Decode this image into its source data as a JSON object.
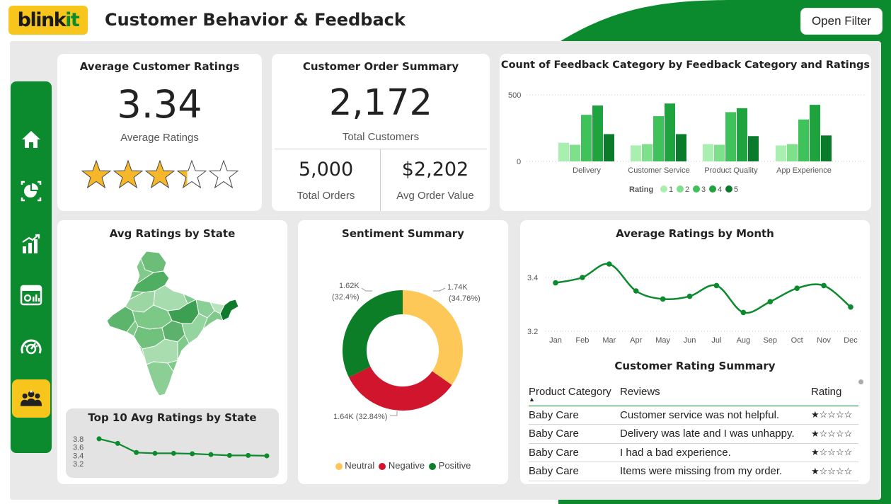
{
  "header": {
    "logo_dark": "blink",
    "logo_green": "it",
    "title": "Customer Behavior & Feedback",
    "filter_button": "Open Filter"
  },
  "sidebar": {
    "items": [
      {
        "icon": "home-icon"
      },
      {
        "icon": "pie-report-icon"
      },
      {
        "icon": "growth-chart-icon"
      },
      {
        "icon": "dashboard-window-icon"
      },
      {
        "icon": "speedometer-icon"
      },
      {
        "icon": "customers-group-icon",
        "active": true
      }
    ]
  },
  "avg_ratings": {
    "title": "Average Customer Ratings",
    "value": "3.34",
    "label": "Average Ratings",
    "stars": 3.34,
    "stars_max": 5
  },
  "order_summary": {
    "title": "Customer Order Summary",
    "customers_value": "2,172",
    "customers_label": "Total Customers",
    "orders_value": "5,000",
    "orders_label": "Total Orders",
    "aov_value": "$2,202",
    "aov_label": "Avg Order Value"
  },
  "feedback_chart": {
    "title": "Count of Feedback Category by Feedback Category and Ratings",
    "legend_title": "Rating",
    "colors": [
      "#a8efb0",
      "#7fe08b",
      "#3fc25a",
      "#1ea33f",
      "#0a7a2b"
    ],
    "chart_data": {
      "type": "bar",
      "categories": [
        "Delivery",
        "Customer Service",
        "Product Quality",
        "App Experience"
      ],
      "series": [
        {
          "name": "1",
          "values": [
            140,
            120,
            130,
            120
          ]
        },
        {
          "name": "2",
          "values": [
            125,
            130,
            125,
            130
          ]
        },
        {
          "name": "3",
          "values": [
            350,
            340,
            370,
            315
          ]
        },
        {
          "name": "4",
          "values": [
            420,
            435,
            400,
            425
          ]
        },
        {
          "name": "5",
          "values": [
            205,
            205,
            190,
            195
          ]
        }
      ],
      "yticks": [
        "500",
        "0"
      ],
      "ylim": [
        0,
        560
      ]
    }
  },
  "state_map": {
    "title": "Avg Ratings by State"
  },
  "top10": {
    "title": "Top 10 Avg Ratings by State",
    "chart_data": {
      "type": "line",
      "values": [
        3.8,
        3.69,
        3.47,
        3.45,
        3.45,
        3.44,
        3.42,
        3.4,
        3.4,
        3.39
      ],
      "yticks": [
        "3.8",
        "3.6",
        "3.4",
        "3.2"
      ],
      "ylim": [
        3.15,
        3.85
      ]
    }
  },
  "sentiment": {
    "title": "Sentiment Summary",
    "chart_data": {
      "type": "pie",
      "slices": [
        {
          "name": "Neutral",
          "value": 34.76,
          "label": "1.74K (34.76%)",
          "color": "#fdc858"
        },
        {
          "name": "Negative",
          "value": 32.84,
          "label": "1.64K (32.84%)",
          "color": "#d0152c"
        },
        {
          "name": "Positive",
          "value": 32.4,
          "label": "1.62K (32.4%)",
          "color": "#0c7e28"
        }
      ]
    },
    "neutral_label_1": "1.74K",
    "neutral_label_2": "(34.76%)",
    "positive_label_1": "1.62K",
    "positive_label_2": "(32.4%)",
    "negative_label": "1.64K (32.84%)",
    "legend": [
      "Neutral",
      "Negative",
      "Positive"
    ]
  },
  "monthly": {
    "title": "Average Ratings by Month",
    "chart_data": {
      "type": "line",
      "categories": [
        "Jan",
        "Feb",
        "Mar",
        "Apr",
        "May",
        "Jun",
        "Jul",
        "Aug",
        "Sep",
        "Oct",
        "Nov",
        "Dec"
      ],
      "values": [
        3.38,
        3.4,
        3.45,
        3.35,
        3.32,
        3.33,
        3.37,
        3.27,
        3.31,
        3.36,
        3.37,
        3.29
      ],
      "yticks": [
        "3.4",
        "3.2"
      ],
      "ylim": [
        3.2,
        3.4
      ]
    }
  },
  "rating_table": {
    "title": "Customer Rating Summary",
    "headers": [
      "Product Category",
      "Reviews",
      "Rating"
    ],
    "rows": [
      [
        "Baby Care",
        "Customer service was not helpful.",
        "★☆☆☆☆"
      ],
      [
        "Baby Care",
        "Delivery was late and I was unhappy.",
        "★☆☆☆☆"
      ],
      [
        "Baby Care",
        "I had a bad experience.",
        "★☆☆☆☆"
      ],
      [
        "Baby Care",
        "Items were missing from my order.",
        "★☆☆☆☆"
      ]
    ]
  }
}
